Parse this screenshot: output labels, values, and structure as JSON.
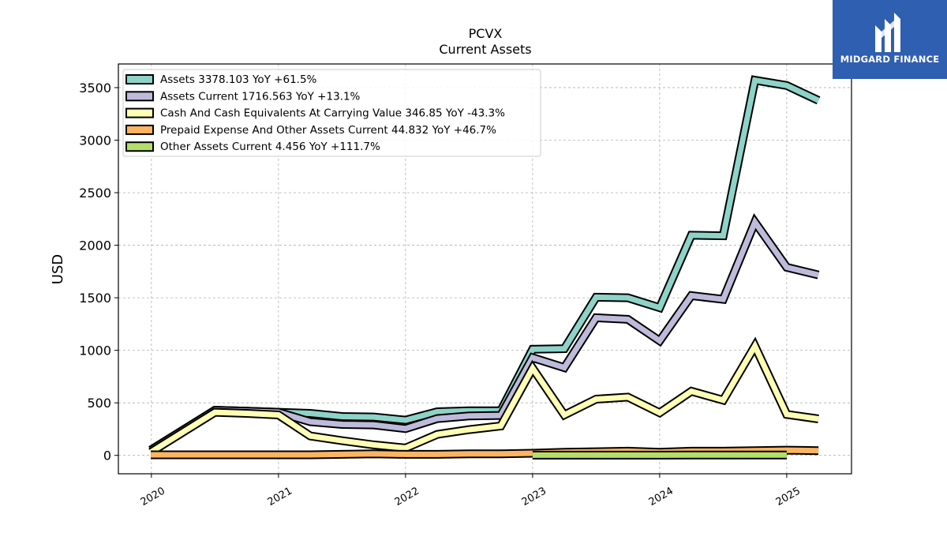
{
  "brand": {
    "name": "MIDGARD FINANCE",
    "logo_icon": "midgard-m-logo-icon",
    "background": "#2f5fb0"
  },
  "chart_data": {
    "type": "line",
    "title": "PCVX",
    "subtitle": "Current  Assets",
    "ylabel": "USD",
    "xlabel": "",
    "ylim": [
      -175,
      3725
    ],
    "xlim": [
      2019.74,
      2025.51
    ],
    "yticks": [
      0,
      500,
      1000,
      1500,
      2000,
      2500,
      3000,
      3500
    ],
    "xticks": [
      2020,
      2021,
      2022,
      2023,
      2024,
      2025
    ],
    "grid": true,
    "legend_position": "top-left",
    "series": [
      {
        "name": "Assets",
        "legend": "Assets  3378.103 YoY +61.5%",
        "color": "#8dd3c7",
        "x": [
          2019.995,
          2020.5,
          2020.75,
          2021.0,
          2021.25,
          2021.5,
          2021.75,
          2022.0,
          2022.25,
          2022.5,
          2022.75,
          2023.0,
          2023.25,
          2023.5,
          2023.75,
          2024.0,
          2024.25,
          2024.5,
          2024.75,
          2025.0,
          2025.25
        ],
        "y": [
          50,
          430,
          420,
          410,
          400,
          370,
          365,
          335,
          415,
          425,
          425,
          1010,
          1015,
          1505,
          1500,
          1405,
          2095,
          2090,
          3570,
          3520,
          3378
        ]
      },
      {
        "name": "Assets Current",
        "legend": "Assets Current  1716.563 YoY +13.1%",
        "color": "#bebada",
        "x": [
          2019.995,
          2020.5,
          2020.75,
          2021.0,
          2021.25,
          2021.5,
          2021.75,
          2022.0,
          2022.25,
          2022.5,
          2022.75,
          2023.0,
          2023.25,
          2023.5,
          2023.75,
          2024.0,
          2024.25,
          2024.5,
          2024.75,
          2025.0,
          2025.25
        ],
        "y": [
          50,
          430,
          420,
          410,
          320,
          295,
          290,
          255,
          350,
          375,
          380,
          930,
          835,
          1310,
          1295,
          1090,
          1520,
          1485,
          2220,
          1790,
          1717
        ]
      },
      {
        "name": "Cash And Cash Equivalents At Carrying Value",
        "legend": "Cash And Cash Equivalents At Carrying Value  346.85 YoY -43.3%",
        "color": "#ffffb3",
        "x": [
          2019.995,
          2020.5,
          2020.75,
          2021.0,
          2021.25,
          2021.5,
          2021.75,
          2022.0,
          2022.25,
          2022.5,
          2022.75,
          2023.0,
          2023.25,
          2023.5,
          2023.75,
          2024.0,
          2024.25,
          2024.5,
          2024.75,
          2025.0,
          2025.25
        ],
        "y": [
          30,
          410,
          400,
          385,
          185,
          140,
          100,
          70,
          200,
          245,
          280,
          830,
          385,
          535,
          555,
          405,
          610,
          525,
          1040,
          390,
          347
        ]
      },
      {
        "name": "Prepaid Expense And Other Assets Current",
        "legend": "Prepaid Expense And Other Assets Current  44.832 YoY +46.7%",
        "color": "#fdb462",
        "x": [
          2019.995,
          2020.5,
          2020.75,
          2021.0,
          2021.25,
          2021.5,
          2021.75,
          2022.0,
          2022.25,
          2022.5,
          2022.75,
          2023.0,
          2023.25,
          2023.5,
          2023.75,
          2024.0,
          2024.25,
          2024.5,
          2024.75,
          2025.0,
          2025.25
        ],
        "y": [
          5,
          5,
          5,
          5,
          5,
          10,
          15,
          10,
          10,
          15,
          15,
          20,
          30,
          35,
          40,
          30,
          40,
          40,
          45,
          50,
          45
        ]
      },
      {
        "name": "Other Assets Current",
        "legend": "Other Assets Current  4.456 YoY +111.7%",
        "color": "#b3de69",
        "x": [
          2023.0,
          2023.25,
          2023.5,
          2023.75,
          2024.0,
          2024.25,
          2024.5,
          2024.75,
          2025.0
        ],
        "y": [
          2,
          2,
          2,
          2,
          2,
          3,
          3,
          4,
          4
        ]
      }
    ]
  }
}
